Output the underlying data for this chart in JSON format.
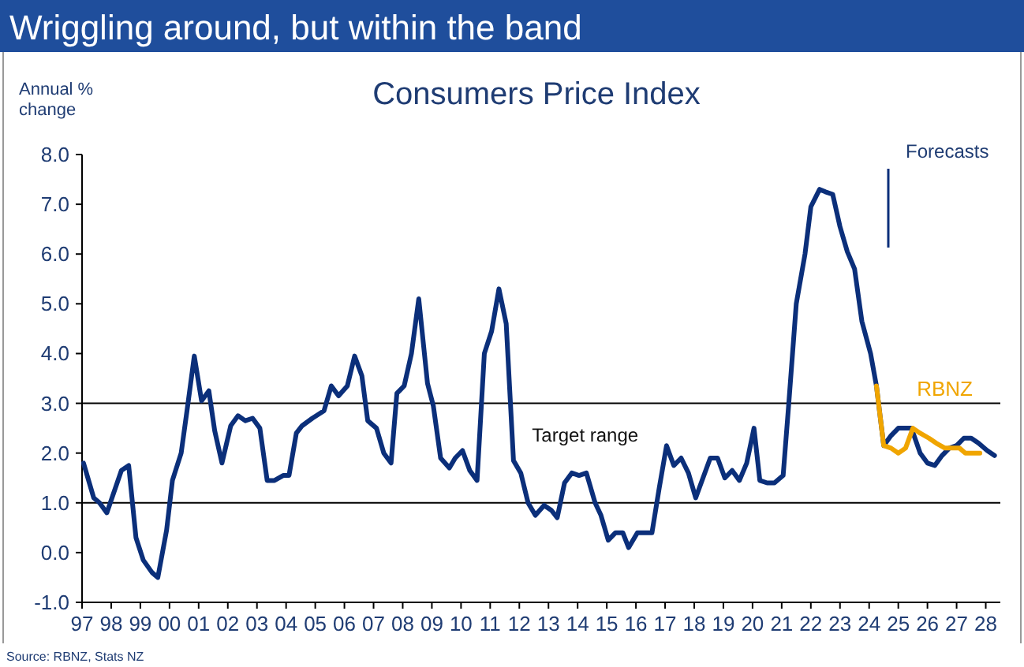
{
  "chart_data": {
    "type": "line",
    "title": "Wriggling around, but within the band",
    "subtitle": "Consumers Price Index",
    "ylabel": "Annual % change",
    "annotations": [
      "Forecasts",
      "Source: RBNZ, Stats NZ"
    ],
    "xlim": [
      1997,
      2028.5
    ],
    "xticks": [
      {
        "value": 1997,
        "label": "97"
      },
      {
        "value": 1998,
        "label": "98"
      },
      {
        "value": 1999,
        "label": "99"
      },
      {
        "value": 2000,
        "label": "00"
      },
      {
        "value": 2001,
        "label": "01"
      },
      {
        "value": 2002,
        "label": "02"
      },
      {
        "value": 2003,
        "label": "03"
      },
      {
        "value": 2004,
        "label": "04"
      },
      {
        "value": 2005,
        "label": "05"
      },
      {
        "value": 2006,
        "label": "06"
      },
      {
        "value": 2007,
        "label": "07"
      },
      {
        "value": 2008,
        "label": "08"
      },
      {
        "value": 2009,
        "label": "09"
      },
      {
        "value": 2010,
        "label": "10"
      },
      {
        "value": 2011,
        "label": "11"
      },
      {
        "value": 2012,
        "label": "12"
      },
      {
        "value": 2013,
        "label": "13"
      },
      {
        "value": 2014,
        "label": "14"
      },
      {
        "value": 2015,
        "label": "15"
      },
      {
        "value": 2016,
        "label": "16"
      },
      {
        "value": 2017,
        "label": "17"
      },
      {
        "value": 2018,
        "label": "18"
      },
      {
        "value": 2019,
        "label": "19"
      },
      {
        "value": 2020,
        "label": "20"
      },
      {
        "value": 2021,
        "label": "21"
      },
      {
        "value": 2022,
        "label": "22"
      },
      {
        "value": 2023,
        "label": "23"
      },
      {
        "value": 2024,
        "label": "24"
      },
      {
        "value": 2025,
        "label": "25"
      },
      {
        "value": 2026,
        "label": "26"
      },
      {
        "value": 2027,
        "label": "27"
      },
      {
        "value": 2028,
        "label": "28"
      }
    ],
    "ylim": [
      -1,
      8
    ],
    "yticks": [
      {
        "value": -1,
        "label": "-1.0"
      },
      {
        "value": 0,
        "label": "0.0"
      },
      {
        "value": 1,
        "label": "1.0"
      },
      {
        "value": 2,
        "label": "2.0"
      },
      {
        "value": 3,
        "label": "3.0"
      },
      {
        "value": 4,
        "label": "4.0"
      },
      {
        "value": 5,
        "label": "5.0"
      },
      {
        "value": 6,
        "label": "6.0"
      },
      {
        "value": 7,
        "label": "7.0"
      },
      {
        "value": 8,
        "label": "8.0"
      }
    ],
    "ref_lines": [
      {
        "axis": "y",
        "value": 3,
        "label": "Target range"
      },
      {
        "axis": "y",
        "value": 1
      }
    ],
    "series": [
      {
        "color": "#0b2f7a",
        "x": [
          1997.05,
          1997.4,
          1997.6,
          1997.85,
          1998.35,
          1998.6,
          1998.85,
          1999.1,
          1999.4,
          1999.6,
          1999.9,
          2000.1,
          2000.4,
          2000.6,
          2000.85,
          2001.1,
          2001.35,
          2001.55,
          2001.8,
          2002.1,
          2002.35,
          2002.6,
          2002.85,
          2003.1,
          2003.35,
          2003.6,
          2003.9,
          2004.1,
          2004.35,
          2004.55,
          2004.9,
          2005.3,
          2005.55,
          2005.8,
          2006.1,
          2006.35,
          2006.6,
          2006.8,
          2007.1,
          2007.35,
          2007.6,
          2007.8,
          2008.05,
          2008.3,
          2008.55,
          2008.85,
          2009.05,
          2009.3,
          2009.6,
          2009.8,
          2010.05,
          2010.3,
          2010.55,
          2010.8,
          2011.05,
          2011.3,
          2011.55,
          2011.8,
          2012.05,
          2012.3,
          2012.55,
          2012.85,
          2013.1,
          2013.3,
          2013.55,
          2013.8,
          2014.05,
          2014.3,
          2014.6,
          2014.8,
          2015.05,
          2015.3,
          2015.55,
          2015.75,
          2016.05,
          2016.3,
          2016.55,
          2016.8,
          2017.05,
          2017.3,
          2017.55,
          2017.8,
          2018.05,
          2018.3,
          2018.55,
          2018.8,
          2019.05,
          2019.3,
          2019.55,
          2019.8,
          2020.05,
          2020.25,
          2020.5,
          2020.75,
          2021.05,
          2021.25,
          2021.5,
          2021.8,
          2022.0,
          2022.3,
          2022.5,
          2022.75,
          2023.0,
          2023.25,
          2023.5,
          2023.75,
          2024.05,
          2024.25,
          2024.5,
          2024.75,
          2025.0,
          2025.25,
          2025.45,
          2025.75,
          2026.0,
          2026.25,
          2026.5,
          2026.75,
          2027.0,
          2027.25,
          2027.5,
          2027.75,
          2028.05,
          2028.3
        ],
        "values": [
          1.8,
          1.1,
          1.0,
          0.8,
          1.65,
          1.75,
          0.3,
          -0.15,
          -0.4,
          -0.5,
          0.45,
          1.45,
          2.0,
          2.85,
          3.95,
          3.05,
          3.25,
          2.45,
          1.8,
          2.55,
          2.75,
          2.65,
          2.7,
          2.5,
          1.45,
          1.45,
          1.55,
          1.55,
          2.4,
          2.55,
          2.7,
          2.85,
          3.35,
          3.15,
          3.35,
          3.95,
          3.55,
          2.65,
          2.5,
          2.0,
          1.8,
          3.2,
          3.35,
          4.0,
          5.1,
          3.4,
          2.95,
          1.9,
          1.7,
          1.9,
          2.05,
          1.65,
          1.45,
          4.0,
          4.45,
          5.3,
          4.6,
          1.85,
          1.6,
          1.0,
          0.75,
          0.95,
          0.85,
          0.7,
          1.4,
          1.6,
          1.55,
          1.6,
          1.0,
          0.75,
          0.25,
          0.4,
          0.4,
          0.1,
          0.4,
          0.4,
          0.4,
          1.3,
          2.15,
          1.75,
          1.9,
          1.6,
          1.1,
          1.5,
          1.9,
          1.9,
          1.5,
          1.65,
          1.45,
          1.8,
          2.5,
          1.45,
          1.4,
          1.4,
          1.55,
          3.05,
          5.0,
          6.0,
          6.95,
          7.3,
          7.25,
          7.2,
          6.55,
          6.05,
          5.7,
          4.65,
          4.0,
          3.35,
          2.15,
          2.35,
          2.5,
          2.5,
          2.5,
          2.0,
          1.8,
          1.75,
          1.95,
          2.1,
          2.15,
          2.3,
          2.3,
          2.2,
          2.05,
          1.95
        ]
      },
      {
        "name": "RBNZ",
        "color": "#f0a500",
        "x": [
          2024.25,
          2024.5,
          2024.75,
          2025.0,
          2025.25,
          2025.5,
          2025.75,
          2026.05,
          2026.3,
          2026.6,
          2026.85,
          2027.1,
          2027.3,
          2027.55,
          2027.8
        ],
        "values": [
          3.35,
          2.15,
          2.1,
          2.0,
          2.1,
          2.5,
          2.4,
          2.3,
          2.2,
          2.1,
          2.1,
          2.1,
          2.0,
          2.0,
          2.0
        ]
      }
    ]
  }
}
